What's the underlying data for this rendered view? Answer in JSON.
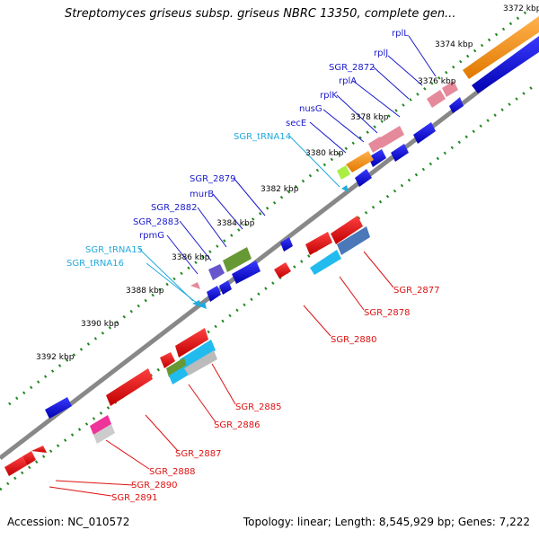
{
  "title": "Streptomyces griseus subsp. griseus NBRC 13350, complete gen...",
  "footer": {
    "accession": "Accession: NC_010572",
    "summary": "Topology: linear; Length: 8,545,929 bp; Genes: 7,222"
  },
  "colors": {
    "forward_label": "#1a1acc",
    "reverse_label": "#dd1111",
    "trna_label": "#22aadd",
    "backbone": "#888888",
    "tick": "#228822"
  },
  "scale_labels": [
    "3372 kbp",
    "3374 kbp",
    "3376 kbp",
    "3378 kbp",
    "3380 kbp",
    "3382 kbp",
    "3384 kbp",
    "3386 kbp",
    "3388 kbp",
    "3390 kbp",
    "3392 kbp"
  ],
  "forward_gene_labels": [
    "rplL",
    "rplJ",
    "SGR_2872",
    "rplA",
    "rplK",
    "nusG",
    "secE",
    "SGR_2879",
    "murB",
    "SGR_2882",
    "SGR_2883",
    "rpmG"
  ],
  "trna_labels": [
    "SGR_tRNA14",
    "SGR_tRNA15",
    "SGR_tRNA16"
  ],
  "reverse_gene_labels": [
    "SGR_2877",
    "SGR_2878",
    "SGR_2880",
    "SGR_2885",
    "SGR_2886",
    "SGR_2887",
    "SGR_2888",
    "SGR_2890",
    "SGR_2891"
  ]
}
